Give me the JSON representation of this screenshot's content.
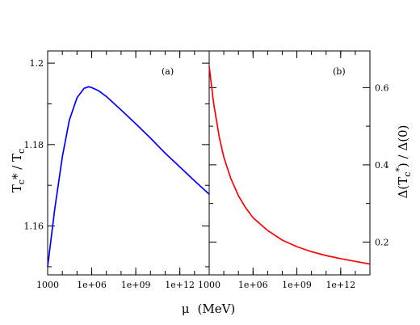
{
  "chart_data": [
    {
      "type": "line",
      "panel_label": "(a)",
      "xscale": "log",
      "xlim": [
        1000,
        100000000000000.0
      ],
      "ylim": [
        1.148,
        1.203
      ],
      "ylabel": "T",
      "ylabel_sub": "c",
      "ylabel_rest": "* / T",
      "ylabel_sub2": "c",
      "ylabel_axis": "left",
      "yticks": [
        1.16,
        1.18,
        1.2
      ],
      "ytick_labels": [
        "1.16",
        "1.18",
        "1.2"
      ],
      "xticks": [
        1000,
        1000000.0,
        1000000000.0,
        1000000000000.0
      ],
      "xtick_labels": [
        "1000",
        "1e+06",
        "1e+09",
        "1e+12"
      ],
      "series": [
        {
          "color": "#0000ff",
          "x": [
            1000,
            3000,
            10000,
            30000,
            100000,
            300000,
            600000,
            1000000.0,
            3000000.0,
            10000000.0,
            100000000.0,
            1000000000.0,
            10000000000.0,
            100000000000.0,
            1000000000000.0,
            10000000000000.0,
            100000000000000.0
          ],
          "y": [
            1.15,
            1.164,
            1.177,
            1.186,
            1.1915,
            1.1938,
            1.1942,
            1.194,
            1.1932,
            1.1918,
            1.1885,
            1.1851,
            1.1816,
            1.1779,
            1.1745,
            1.1711,
            1.1678
          ]
        }
      ]
    },
    {
      "type": "line",
      "panel_label": "(b)",
      "xscale": "log",
      "xlim": [
        1000,
        100000000000000.0
      ],
      "ylim": [
        0.115,
        0.695
      ],
      "ylabel": "Δ(T",
      "ylabel_sub": "c",
      "ylabel_sup": "*",
      "ylabel_rest": ") / Δ(0)",
      "ylabel_axis": "right",
      "yticks": [
        0.2,
        0.4,
        0.6
      ],
      "ytick_labels": [
        "0.2",
        "0.4",
        "0.6"
      ],
      "xticks": [
        1000,
        1000000.0,
        1000000000.0,
        1000000000000.0
      ],
      "xtick_labels": [
        "1000",
        "1e+06",
        "1e+09",
        "1e+12"
      ],
      "series": [
        {
          "color": "#ff0000",
          "x": [
            1000,
            2000,
            5000,
            10000,
            30000,
            100000,
            300000,
            1000000.0,
            10000000.0,
            100000000.0,
            1000000000.0,
            10000000000.0,
            100000000000.0,
            1000000000000.0,
            10000000000000.0,
            100000000000000.0
          ],
          "y": [
            0.655,
            0.56,
            0.47,
            0.42,
            0.365,
            0.32,
            0.29,
            0.263,
            0.23,
            0.205,
            0.188,
            0.175,
            0.165,
            0.157,
            0.15,
            0.143
          ]
        }
      ]
    }
  ],
  "xlabel_symbol": "μ",
  "xlabel_unit": "(MeV)"
}
